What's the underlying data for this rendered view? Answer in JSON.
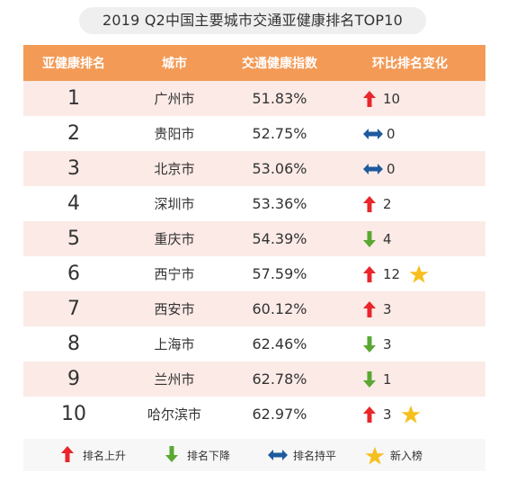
{
  "title": "2019 Q2中国主要城市交通亚健康排名TOP10",
  "headers": {
    "rank": "亚健康排名",
    "city": "城市",
    "index": "交通健康指数",
    "change": "环比排名变化"
  },
  "rows": [
    {
      "rank": "1",
      "city": "广州市",
      "index": "51.83%",
      "direction": "up",
      "change": "10",
      "new": false
    },
    {
      "rank": "2",
      "city": "贵阳市",
      "index": "52.75%",
      "direction": "flat",
      "change": "0",
      "new": false
    },
    {
      "rank": "3",
      "city": "北京市",
      "index": "53.06%",
      "direction": "flat",
      "change": "0",
      "new": false
    },
    {
      "rank": "4",
      "city": "深圳市",
      "index": "53.36%",
      "direction": "up",
      "change": "2",
      "new": false
    },
    {
      "rank": "5",
      "city": "重庆市",
      "index": "54.39%",
      "direction": "down",
      "change": "4",
      "new": false
    },
    {
      "rank": "6",
      "city": "西宁市",
      "index": "57.59%",
      "direction": "up",
      "change": "12",
      "new": true
    },
    {
      "rank": "7",
      "city": "西安市",
      "index": "60.12%",
      "direction": "up",
      "change": "3",
      "new": false
    },
    {
      "rank": "8",
      "city": "上海市",
      "index": "62.46%",
      "direction": "down",
      "change": "3",
      "new": false
    },
    {
      "rank": "9",
      "city": "兰州市",
      "index": "62.78%",
      "direction": "down",
      "change": "1",
      "new": false
    },
    {
      "rank": "10",
      "city": "哈尔滨市",
      "index": "62.97%",
      "direction": "up",
      "change": "3",
      "new": true
    }
  ],
  "legend": {
    "up": "排名上升",
    "down": "排名下降",
    "flat": "排名持平",
    "new": "新入榜"
  },
  "colors": {
    "header": "#f39a56",
    "stripe": "#fbeae6",
    "up": "#e8262b",
    "down": "#5aa832",
    "flat": "#1e5a9e",
    "star": "#f7bf1e"
  },
  "icons": {
    "up": "arrow-up-icon",
    "down": "arrow-down-icon",
    "flat": "arrow-left-right-icon",
    "new": "star-icon"
  }
}
